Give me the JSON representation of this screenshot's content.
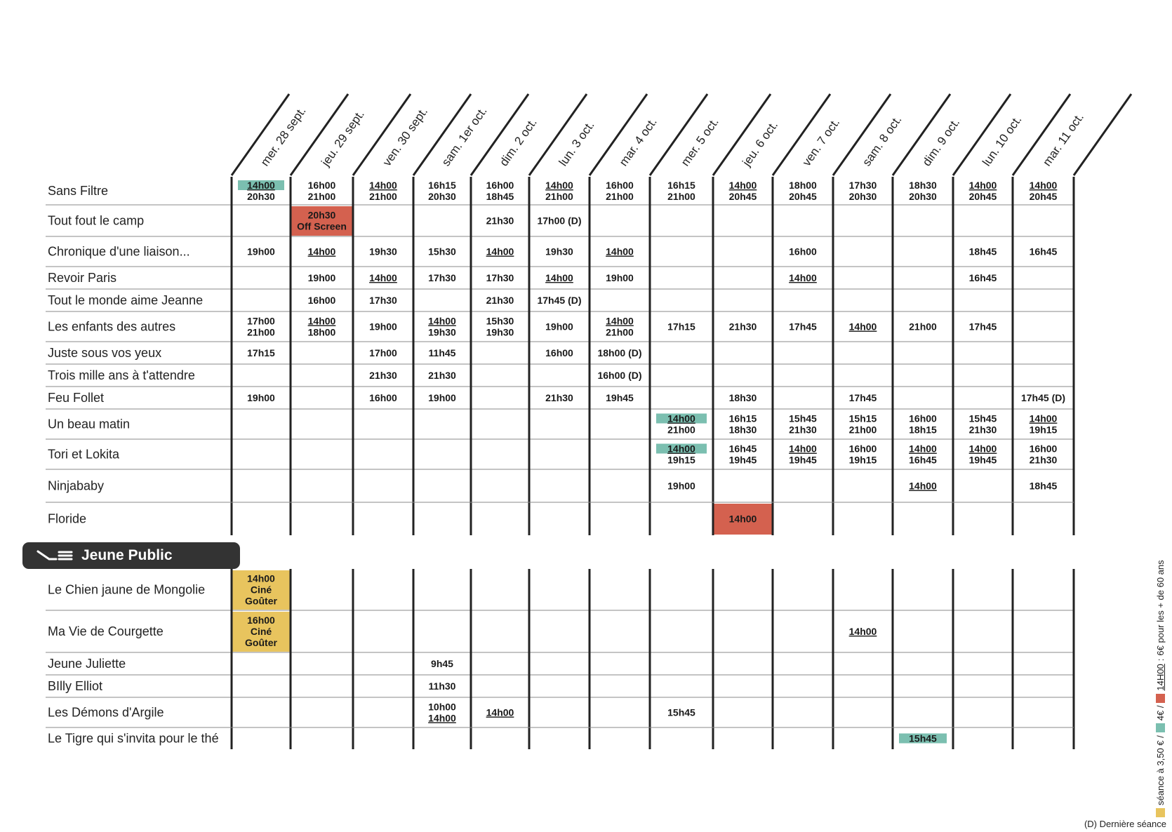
{
  "days": [
    "mer. 28 sept.",
    "jeu. 29 sept.",
    "ven. 30 sept.",
    "sam. 1er oct.",
    "dim. 2 oct.",
    "lun. 3 oct.",
    "mar. 4 oct.",
    "mer. 5 oct.",
    "jeu. 6 oct.",
    "ven. 7 oct.",
    "sam. 8 oct.",
    "dim. 9 oct.",
    "lun. 10 oct.",
    "mar. 11 oct."
  ],
  "colors": {
    "teal": "#7bbfb0",
    "red": "#d4614f",
    "yellow": "#e8c45e",
    "dark": "#333333"
  },
  "section_label": "Jeune Public",
  "films_main": [
    {
      "title": "Sans Filtre",
      "cells": [
        {
          "d": 0,
          "l": [
            {
              "t": "14h00",
              "u": true,
              "hl": "teal"
            },
            {
              "t": "20h30"
            }
          ]
        },
        {
          "d": 1,
          "l": [
            {
              "t": "16h00"
            },
            {
              "t": "21h00"
            }
          ]
        },
        {
          "d": 2,
          "l": [
            {
              "t": "14h00",
              "u": true
            },
            {
              "t": "21h00"
            }
          ]
        },
        {
          "d": 3,
          "l": [
            {
              "t": "16h15"
            },
            {
              "t": "20h30"
            }
          ]
        },
        {
          "d": 4,
          "l": [
            {
              "t": "16h00"
            },
            {
              "t": "18h45"
            }
          ]
        },
        {
          "d": 5,
          "l": [
            {
              "t": "14h00",
              "u": true
            },
            {
              "t": "21h00"
            }
          ]
        },
        {
          "d": 6,
          "l": [
            {
              "t": "16h00"
            },
            {
              "t": "21h00"
            }
          ]
        },
        {
          "d": 7,
          "l": [
            {
              "t": "16h15"
            },
            {
              "t": "21h00"
            }
          ]
        },
        {
          "d": 8,
          "l": [
            {
              "t": "14h00",
              "u": true
            },
            {
              "t": "20h45"
            }
          ]
        },
        {
          "d": 9,
          "l": [
            {
              "t": "18h00"
            },
            {
              "t": "20h45"
            }
          ]
        },
        {
          "d": 10,
          "l": [
            {
              "t": "17h30"
            },
            {
              "t": "20h30"
            }
          ]
        },
        {
          "d": 11,
          "l": [
            {
              "t": "18h30"
            },
            {
              "t": "20h30"
            }
          ]
        },
        {
          "d": 12,
          "l": [
            {
              "t": "14h00",
              "u": true
            },
            {
              "t": "20h45"
            }
          ]
        },
        {
          "d": 13,
          "l": [
            {
              "t": "14h00",
              "u": true
            },
            {
              "t": "20h45"
            }
          ]
        }
      ]
    },
    {
      "title": "Tout fout le camp",
      "cells": [
        {
          "d": 1,
          "bg": "red",
          "l": [
            {
              "t": "20h30"
            },
            {
              "t": "Off Screen"
            }
          ]
        },
        {
          "d": 4,
          "l": [
            {
              "t": "21h30"
            }
          ]
        },
        {
          "d": 5,
          "l": [
            {
              "t": "17h00 (D)"
            }
          ]
        }
      ]
    },
    {
      "title": "Chronique d'une liaison...",
      "cells": [
        {
          "d": 0,
          "l": [
            {
              "t": "19h00"
            }
          ]
        },
        {
          "d": 1,
          "l": [
            {
              "t": "14h00",
              "u": true
            }
          ]
        },
        {
          "d": 2,
          "l": [
            {
              "t": "19h30"
            }
          ]
        },
        {
          "d": 3,
          "l": [
            {
              "t": "15h30"
            }
          ]
        },
        {
          "d": 4,
          "l": [
            {
              "t": "14h00",
              "u": true
            }
          ]
        },
        {
          "d": 5,
          "l": [
            {
              "t": "19h30"
            }
          ]
        },
        {
          "d": 6,
          "l": [
            {
              "t": "14h00",
              "u": true
            }
          ]
        },
        {
          "d": 9,
          "l": [
            {
              "t": "16h00"
            }
          ]
        },
        {
          "d": 12,
          "l": [
            {
              "t": "18h45"
            }
          ]
        },
        {
          "d": 13,
          "l": [
            {
              "t": "16h45"
            }
          ]
        }
      ]
    },
    {
      "title": "Revoir Paris",
      "cells": [
        {
          "d": 1,
          "l": [
            {
              "t": "19h00"
            }
          ]
        },
        {
          "d": 2,
          "l": [
            {
              "t": "14h00",
              "u": true
            }
          ]
        },
        {
          "d": 3,
          "l": [
            {
              "t": "17h30"
            }
          ]
        },
        {
          "d": 4,
          "l": [
            {
              "t": "17h30"
            }
          ]
        },
        {
          "d": 5,
          "l": [
            {
              "t": "14h00",
              "u": true
            }
          ]
        },
        {
          "d": 6,
          "l": [
            {
              "t": "19h00"
            }
          ]
        },
        {
          "d": 9,
          "l": [
            {
              "t": "14h00",
              "u": true
            }
          ]
        },
        {
          "d": 12,
          "l": [
            {
              "t": "16h45"
            }
          ]
        }
      ]
    },
    {
      "title": "Tout le monde aime Jeanne",
      "cells": [
        {
          "d": 1,
          "l": [
            {
              "t": "16h00"
            }
          ]
        },
        {
          "d": 2,
          "l": [
            {
              "t": "17h30"
            }
          ]
        },
        {
          "d": 4,
          "l": [
            {
              "t": "21h30"
            }
          ]
        },
        {
          "d": 5,
          "l": [
            {
              "t": "17h45 (D)"
            }
          ]
        }
      ]
    },
    {
      "title": "Les enfants des autres",
      "cells": [
        {
          "d": 0,
          "l": [
            {
              "t": "17h00"
            },
            {
              "t": "21h00"
            }
          ]
        },
        {
          "d": 1,
          "l": [
            {
              "t": "14h00",
              "u": true
            },
            {
              "t": "18h00"
            }
          ]
        },
        {
          "d": 2,
          "l": [
            {
              "t": "19h00"
            }
          ]
        },
        {
          "d": 3,
          "l": [
            {
              "t": "14h00",
              "u": true
            },
            {
              "t": "19h30"
            }
          ]
        },
        {
          "d": 4,
          "l": [
            {
              "t": "15h30"
            },
            {
              "t": "19h30"
            }
          ]
        },
        {
          "d": 5,
          "l": [
            {
              "t": "19h00"
            }
          ]
        },
        {
          "d": 6,
          "l": [
            {
              "t": "14h00",
              "u": true
            },
            {
              "t": "21h00"
            }
          ]
        },
        {
          "d": 7,
          "l": [
            {
              "t": "17h15"
            }
          ]
        },
        {
          "d": 8,
          "l": [
            {
              "t": "21h30"
            }
          ]
        },
        {
          "d": 9,
          "l": [
            {
              "t": "17h45"
            }
          ]
        },
        {
          "d": 10,
          "l": [
            {
              "t": "14h00",
              "u": true
            }
          ]
        },
        {
          "d": 11,
          "l": [
            {
              "t": "21h00"
            }
          ]
        },
        {
          "d": 12,
          "l": [
            {
              "t": "17h45"
            }
          ]
        }
      ]
    },
    {
      "title": "Juste sous vos yeux",
      "cells": [
        {
          "d": 0,
          "l": [
            {
              "t": "17h15"
            }
          ]
        },
        {
          "d": 2,
          "l": [
            {
              "t": "17h00"
            }
          ]
        },
        {
          "d": 3,
          "l": [
            {
              "t": "11h45"
            }
          ]
        },
        {
          "d": 5,
          "l": [
            {
              "t": "16h00"
            }
          ]
        },
        {
          "d": 6,
          "l": [
            {
              "t": "18h00 (D)"
            }
          ]
        }
      ]
    },
    {
      "title": "Trois mille ans à t'attendre",
      "cells": [
        {
          "d": 2,
          "l": [
            {
              "t": "21h30"
            }
          ]
        },
        {
          "d": 3,
          "l": [
            {
              "t": "21h30"
            }
          ]
        },
        {
          "d": 6,
          "l": [
            {
              "t": "16h00 (D)"
            }
          ]
        }
      ]
    },
    {
      "title": "Feu Follet",
      "cells": [
        {
          "d": 0,
          "l": [
            {
              "t": "19h00"
            }
          ]
        },
        {
          "d": 2,
          "l": [
            {
              "t": "16h00"
            }
          ]
        },
        {
          "d": 3,
          "l": [
            {
              "t": "19h00"
            }
          ]
        },
        {
          "d": 5,
          "l": [
            {
              "t": "21h30"
            }
          ]
        },
        {
          "d": 6,
          "l": [
            {
              "t": "19h45"
            }
          ]
        },
        {
          "d": 8,
          "l": [
            {
              "t": "18h30"
            }
          ]
        },
        {
          "d": 10,
          "l": [
            {
              "t": "17h45"
            }
          ]
        },
        {
          "d": 13,
          "l": [
            {
              "t": "17h45 (D)"
            }
          ]
        }
      ]
    },
    {
      "title": "Un beau matin",
      "cells": [
        {
          "d": 7,
          "l": [
            {
              "t": "14h00",
              "u": true,
              "hl": "teal"
            },
            {
              "t": "21h00"
            }
          ]
        },
        {
          "d": 8,
          "l": [
            {
              "t": "16h15"
            },
            {
              "t": "18h30"
            }
          ]
        },
        {
          "d": 9,
          "l": [
            {
              "t": "15h45"
            },
            {
              "t": "21h30"
            }
          ]
        },
        {
          "d": 10,
          "l": [
            {
              "t": "15h15"
            },
            {
              "t": "21h00"
            }
          ]
        },
        {
          "d": 11,
          "l": [
            {
              "t": "16h00"
            },
            {
              "t": "18h15"
            }
          ]
        },
        {
          "d": 12,
          "l": [
            {
              "t": "15h45"
            },
            {
              "t": "21h30"
            }
          ]
        },
        {
          "d": 13,
          "l": [
            {
              "t": "14h00",
              "u": true
            },
            {
              "t": "19h15"
            }
          ]
        }
      ]
    },
    {
      "title": "Tori et Lokita",
      "cells": [
        {
          "d": 7,
          "l": [
            {
              "t": "14h00",
              "u": true,
              "hl": "teal"
            },
            {
              "t": "19h15"
            }
          ]
        },
        {
          "d": 8,
          "l": [
            {
              "t": "16h45"
            },
            {
              "t": "19h45"
            }
          ]
        },
        {
          "d": 9,
          "l": [
            {
              "t": "14h00",
              "u": true
            },
            {
              "t": "19h45"
            }
          ]
        },
        {
          "d": 10,
          "l": [
            {
              "t": "16h00"
            },
            {
              "t": "19h15"
            }
          ]
        },
        {
          "d": 11,
          "l": [
            {
              "t": "14h00",
              "u": true
            },
            {
              "t": "16h45"
            }
          ]
        },
        {
          "d": 12,
          "l": [
            {
              "t": "14h00",
              "u": true
            },
            {
              "t": "19h45"
            }
          ]
        },
        {
          "d": 13,
          "l": [
            {
              "t": "16h00"
            },
            {
              "t": "21h30"
            }
          ]
        }
      ]
    },
    {
      "title": "Ninjababy",
      "cells": [
        {
          "d": 7,
          "l": [
            {
              "t": "19h00"
            }
          ]
        },
        {
          "d": 11,
          "l": [
            {
              "t": "14h00",
              "u": true
            }
          ]
        },
        {
          "d": 13,
          "l": [
            {
              "t": "18h45"
            }
          ]
        }
      ]
    },
    {
      "title": "Floride",
      "cells": [
        {
          "d": 8,
          "bg": "red",
          "l": [
            {
              "t": "14h00"
            }
          ]
        }
      ]
    }
  ],
  "films_jeune": [
    {
      "title": "Le Chien jaune de Mongolie",
      "cells": [
        {
          "d": 0,
          "bg": "yellow",
          "l": [
            {
              "t": "14h00"
            },
            {
              "t": "Ciné"
            },
            {
              "t": "Goûter"
            }
          ]
        }
      ]
    },
    {
      "title": "Ma Vie de Courgette",
      "cells": [
        {
          "d": 0,
          "bg": "yellow",
          "l": [
            {
              "t": "16h00"
            },
            {
              "t": "Ciné"
            },
            {
              "t": "Goûter"
            }
          ]
        },
        {
          "d": 10,
          "l": [
            {
              "t": "14h00",
              "u": true
            }
          ]
        }
      ]
    },
    {
      "title": "Jeune Juliette",
      "cells": [
        {
          "d": 3,
          "l": [
            {
              "t": "9h45"
            }
          ]
        }
      ]
    },
    {
      "title": "BIlly Elliot",
      "cells": [
        {
          "d": 3,
          "l": [
            {
              "t": "11h30"
            }
          ]
        }
      ]
    },
    {
      "title": "Les Démons d'Argile",
      "cells": [
        {
          "d": 3,
          "l": [
            {
              "t": "10h00"
            },
            {
              "t": "14h00",
              "u": true
            }
          ]
        },
        {
          "d": 4,
          "l": [
            {
              "t": "14h00",
              "u": true
            }
          ]
        },
        {
          "d": 7,
          "l": [
            {
              "t": "15h45"
            }
          ]
        }
      ]
    },
    {
      "title": "Le Tigre qui s'invita pour le thé",
      "cells": [
        {
          "d": 11,
          "l": [
            {
              "t": "15h45",
              "hl": "teal"
            }
          ]
        }
      ]
    }
  ],
  "legend": {
    "p1": "séance à 3,50 € /",
    "p2": "4€ /",
    "p3": "6€ pour les + de 60 ans",
    "underlined": "14H00"
  },
  "last_session_note": "(D) Dernière séance"
}
